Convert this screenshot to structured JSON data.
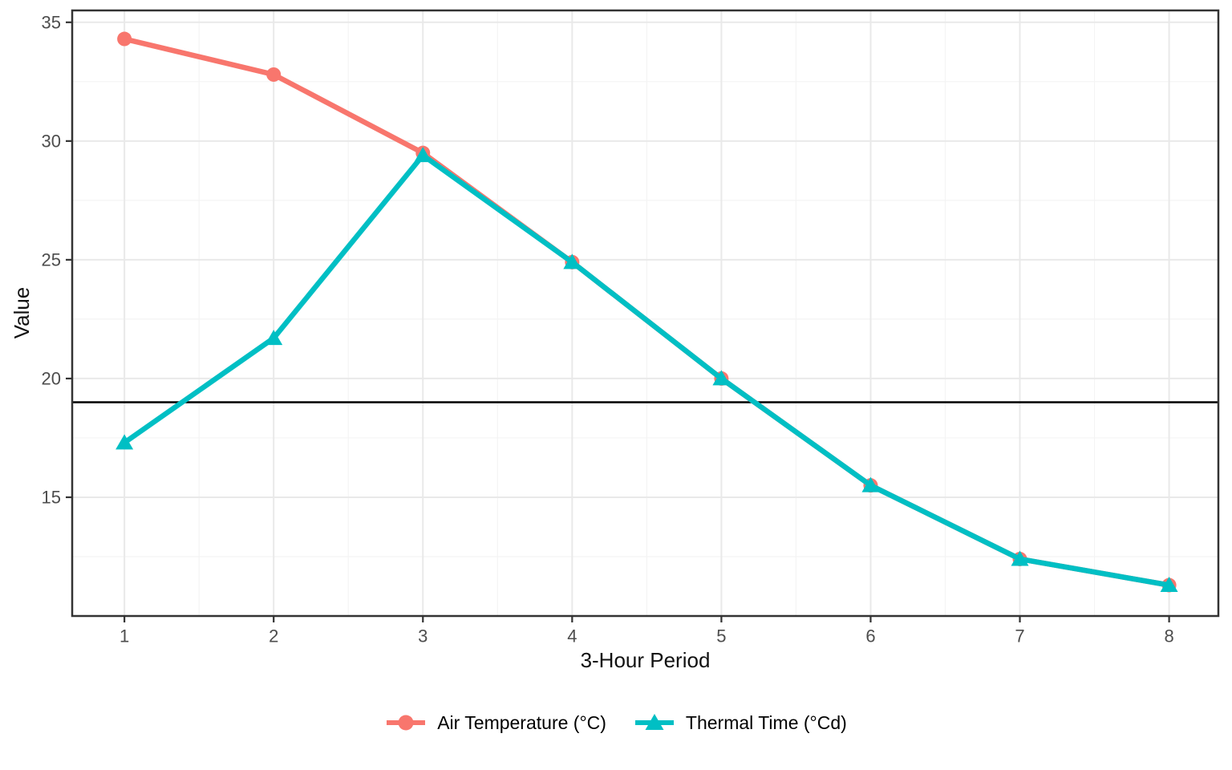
{
  "chart_data": {
    "type": "line",
    "title": "",
    "xlabel": "3-Hour Period",
    "ylabel": "Value",
    "x": [
      1,
      2,
      3,
      4,
      5,
      6,
      7,
      8
    ],
    "series": [
      {
        "name": "Air Temperature (°C)",
        "color": "#F8766D",
        "marker": "circle",
        "values": [
          34.3,
          32.8,
          29.5,
          24.9,
          20.0,
          15.5,
          12.4,
          11.3
        ]
      },
      {
        "name": "Thermal Time (°Cd)",
        "color": "#00BFC4",
        "marker": "triangle",
        "values": [
          17.3,
          21.7,
          29.4,
          24.9,
          20.0,
          15.5,
          12.4,
          11.3
        ]
      }
    ],
    "hline": {
      "y": 19,
      "color": "#000000"
    },
    "x_ticks": [
      1,
      2,
      3,
      4,
      5,
      6,
      7,
      8
    ],
    "y_ticks": [
      15,
      20,
      25,
      30,
      35
    ],
    "x_minor": [
      1.5,
      2.5,
      3.5,
      4.5,
      5.5,
      6.5,
      7.5
    ],
    "y_minor": [
      12.5,
      17.5,
      22.5,
      27.5,
      32.5
    ],
    "xlim": [
      0.65,
      8.33
    ],
    "ylim": [
      10.0,
      35.5
    ],
    "grid": true,
    "legend_position": "bottom",
    "theme": {
      "grid_major": "#E9E9E9",
      "grid_minor": "#F4F4F4",
      "border": "#333333",
      "tick_text": "#4D4D4D",
      "axis_title": "#111111",
      "background": "#FFFFFF"
    }
  }
}
